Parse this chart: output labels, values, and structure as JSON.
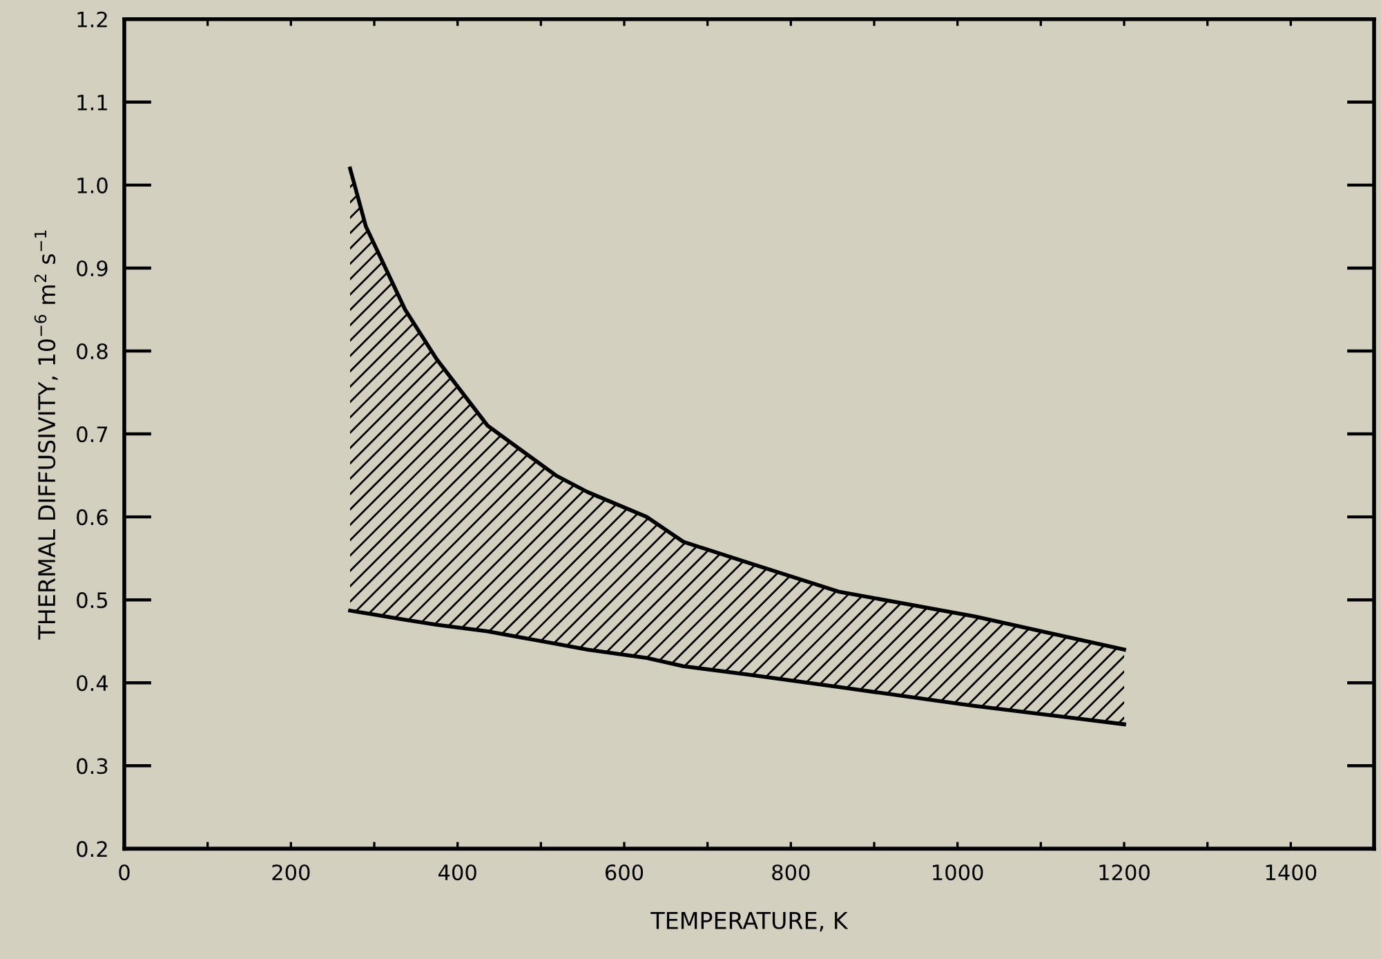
{
  "chart_data": {
    "type": "line",
    "xlabel": "TEMPERATURE, K",
    "ylabel": "THERMAL DIFFUSIVITY, 10$^{−6}$ m$^{2}$ s$^{−1}$",
    "series": [
      {
        "color": "#000000",
        "x": [
          271,
          290,
          337,
          375,
          436,
          518,
          556,
          627,
          671,
          748,
          857,
          1021,
          1200
        ],
        "values": [
          1.02,
          0.95,
          0.85,
          0.79,
          0.71,
          0.65,
          0.63,
          0.6,
          0.57,
          0.545,
          0.51,
          0.48,
          0.44
        ]
      },
      {
        "color": "#000000",
        "x": [
          271,
          290,
          337,
          375,
          436,
          518,
          556,
          627,
          671,
          748,
          857,
          1021,
          1200
        ],
        "values": [
          0.487,
          0.484,
          0.476,
          0.47,
          0.462,
          0.447,
          0.44,
          0.43,
          0.42,
          0.41,
          0.395,
          0.372,
          0.35
        ]
      }
    ],
    "xlim": [
      0,
      1500
    ],
    "xticks": [
      0,
      {
        "value": 100,
        "label": null
      },
      200,
      {
        "value": 300,
        "label": null
      },
      400,
      {
        "value": 500,
        "label": null
      },
      600,
      {
        "value": 700,
        "label": null
      },
      800,
      {
        "value": 900,
        "label": null
      },
      1000,
      {
        "value": 1100,
        "label": null
      },
      1200,
      {
        "value": 1300,
        "label": null
      },
      1400
    ],
    "ylim": [
      0.2,
      1.2
    ],
    "yticks": [
      0.2,
      0.3,
      0.4,
      0.5,
      0.6,
      0.7,
      0.8,
      0.9,
      {
        "value": 1.0,
        "label": "1.0"
      },
      1.1,
      1.2
    ],
    "grid": false,
    "legend": false
  }
}
